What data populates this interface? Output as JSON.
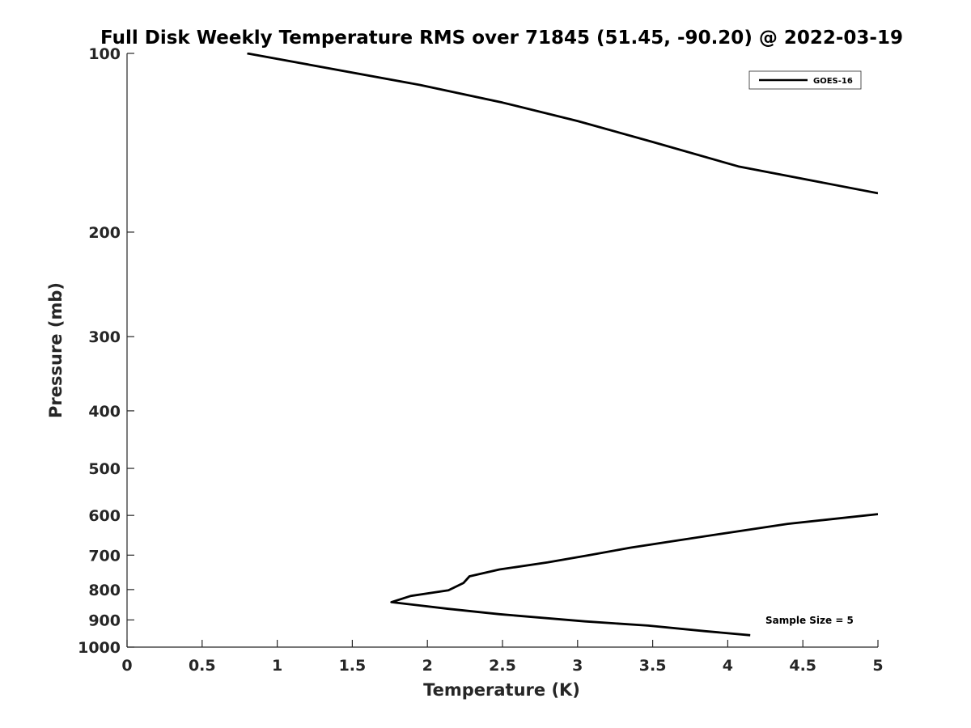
{
  "chart_data": {
    "type": "line",
    "title": "Full Disk Weekly Temperature RMS over 71845 (51.45, -90.20) @ 2022-03-19",
    "xlabel": "Temperature (K)",
    "ylabel": "Pressure (mb)",
    "xlim": [
      0,
      5
    ],
    "ylim": [
      100,
      1000
    ],
    "y_scale": "log",
    "y_reversed": true,
    "grid": false,
    "legend_position": "top-right",
    "x_ticks": [
      0,
      0.5,
      1,
      1.5,
      2,
      2.5,
      3,
      3.5,
      4,
      4.5,
      5
    ],
    "x_tick_labels": [
      "0",
      "0.5",
      "1",
      "1.5",
      "2",
      "2.5",
      "3",
      "3.5",
      "4",
      "4.5",
      "5"
    ],
    "y_ticks": [
      100,
      200,
      300,
      400,
      500,
      600,
      700,
      800,
      900,
      1000
    ],
    "y_tick_labels": [
      "100",
      "200",
      "300",
      "400",
      "500",
      "600",
      "700",
      "800",
      "900",
      "1000"
    ],
    "series": [
      {
        "name": "GOES-16",
        "color": "#000000",
        "segments": [
          {
            "x": [
              0.8,
              1.95,
              2.5,
              3.0,
              3.5,
              4.07,
              5.0
            ],
            "y": [
              100,
              113,
              121,
              130,
              141,
              155,
              172
            ]
          },
          {
            "x": [
              5.0,
              4.4,
              4.0,
              3.6,
              3.35,
              3.08,
              2.8,
              2.48,
              2.28,
              2.24,
              2.14,
              1.89,
              1.76,
              2.14,
              2.48,
              3.05,
              3.47,
              3.85,
              4.15
            ],
            "y": [
              597,
              620,
              642,
              665,
              680,
              700,
              720,
              740,
              760,
              780,
              802,
              820,
              840,
              862,
              880,
              905,
              920,
              940,
              955
            ]
          }
        ]
      }
    ],
    "annotations": [
      {
        "text": "Sample Size = 5"
      }
    ]
  }
}
